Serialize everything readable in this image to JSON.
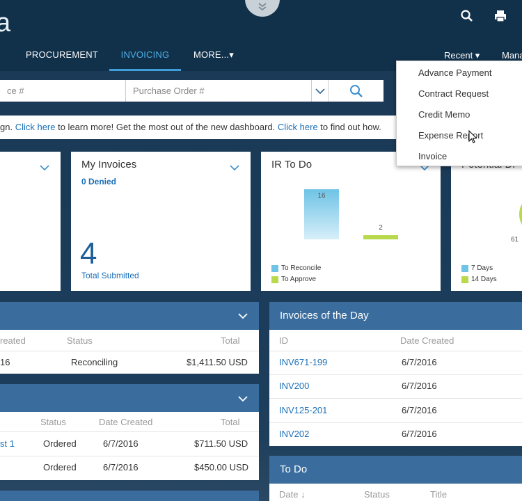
{
  "header": {
    "logo_text": "a",
    "nav": [
      "PROCUREMENT",
      "INVOICING",
      "MORE...▾"
    ],
    "active_nav": "INVOICING",
    "recent_label": "Recent ▾",
    "manage_label": "Mana"
  },
  "search": {
    "field1_placeholder": "ce #",
    "field2_placeholder": "Purchase Order #"
  },
  "info_bar": {
    "part1": "gn. ",
    "link1": "Click here",
    "part2": " to learn more! Get the most out of the new dashboard. ",
    "link2": "Click here",
    "part3": " to find out how."
  },
  "recent_menu": {
    "items": [
      "Advance Payment",
      "Contract Request",
      "Credit Memo",
      "Expense Report",
      "Invoice"
    ]
  },
  "tiles": {
    "my_invoices": {
      "title": "My Invoices",
      "denied": "0 Denied",
      "big_number": "4",
      "caption": "Total Submitted"
    },
    "ir_todo": {
      "title": "IR To Do",
      "bar1_value": "16",
      "bar2_value": "2",
      "legend1": "To Reconcile",
      "legend2": "To Approve",
      "color1": "#6ec3e6",
      "color2": "#b8d94c"
    },
    "potential": {
      "title": "Potential Di",
      "value": "61",
      "legend1": "7 Days",
      "legend2": "14 Days"
    }
  },
  "left_panel1": {
    "headers": [
      "reated",
      "Status",
      "Total"
    ],
    "rows": [
      {
        "created": "16",
        "status": "Reconciling",
        "total": "$1,411.50 USD"
      }
    ]
  },
  "left_panel2": {
    "headers": [
      "Status",
      "Date Created",
      "Total"
    ],
    "rows": [
      {
        "name": "st 1",
        "status": "Ordered",
        "date": "6/7/2016",
        "total": "$711.50 USD"
      },
      {
        "name": "",
        "status": "Ordered",
        "date": "6/7/2016",
        "total": "$450.00 USD"
      }
    ]
  },
  "invoices_of_day": {
    "title": "Invoices of the Day",
    "headers": [
      "ID",
      "Date Created"
    ],
    "rows": [
      {
        "id": "INV671-199",
        "date": "6/7/2016"
      },
      {
        "id": "INV200",
        "date": "6/7/2016"
      },
      {
        "id": "INV125-201",
        "date": "6/7/2016"
      },
      {
        "id": "INV202",
        "date": "6/7/2016"
      }
    ]
  },
  "todo": {
    "title": "To Do",
    "headers": [
      "Date ↓",
      "Status",
      "Title"
    ]
  }
}
